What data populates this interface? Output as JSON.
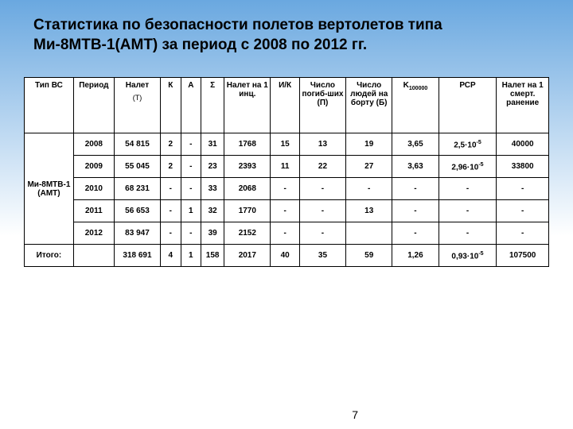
{
  "title": "Статистика по безопасности полетов вертолетов типа Ми-8МТВ-1(АМТ) за период с 2008 по 2012 гг.",
  "page_number": "7",
  "headers": {
    "type": "Тип ВС",
    "period": "Период",
    "nalet": "Налет",
    "nalet_sub": "(T)",
    "k": "К",
    "a": "А",
    "sigma": "Σ",
    "nal1": "Налет на 1 инц.",
    "ik": "И/К",
    "pogib": "Число погиб-ших (П)",
    "bort": "Число людей на борту (Б)",
    "k100": "K",
    "k100_sub": "100000",
    "pcp": "РСР",
    "smert": "Налет на 1 смерт. ранение"
  },
  "type_label": "Ми-8МТВ-1 (АМТ)",
  "rows": [
    {
      "period": "2008",
      "nalet": "54 815",
      "k": "2",
      "a": "-",
      "sigma": "31",
      "nal1": "1768",
      "ik": "15",
      "pogib": "13",
      "bort": "19",
      "k100": "3,65",
      "pcp": "2,5·10",
      "pcp_exp": "-5",
      "smert": "40000"
    },
    {
      "period": "2009",
      "nalet": "55 045",
      "k": "2",
      "a": "-",
      "sigma": "23",
      "nal1": "2393",
      "ik": "11",
      "pogib": "22",
      "bort": "27",
      "k100": "3,63",
      "pcp": "2,96·10",
      "pcp_exp": "-5",
      "smert": "33800"
    },
    {
      "period": "2010",
      "nalet": "68 231",
      "k": "-",
      "a": "-",
      "sigma": "33",
      "nal1": "2068",
      "ik": "-",
      "pogib": "-",
      "bort": "-",
      "k100": "-",
      "pcp": "-",
      "pcp_exp": "",
      "smert": "-"
    },
    {
      "period": "2011",
      "nalet": "56 653",
      "k": "-",
      "a": "1",
      "sigma": "32",
      "nal1": "1770",
      "ik": "-",
      "pogib": "-",
      "bort": "13",
      "k100": "-",
      "pcp": "-",
      "pcp_exp": "",
      "smert": "-"
    },
    {
      "period": "2012",
      "nalet": "83 947",
      "k": "-",
      "a": "-",
      "sigma": "39",
      "nal1": "2152",
      "ik": "-",
      "pogib": "-",
      "bort": "",
      "k100": "-",
      "pcp": "-",
      "pcp_exp": "",
      "smert": "-"
    }
  ],
  "totals": {
    "label": "Итого:",
    "nalet": "318 691",
    "k": "4",
    "a": "1",
    "sigma": "158",
    "nal1": "2017",
    "ik": "40",
    "pogib": "35",
    "bort": "59",
    "k100": "1,26",
    "pcp": "0,93·10",
    "pcp_exp": "-5",
    "smert": "107500"
  }
}
